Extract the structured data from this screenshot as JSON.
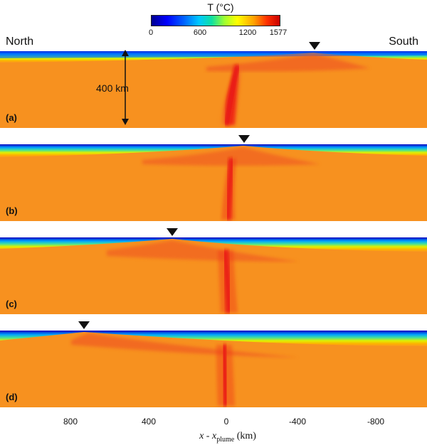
{
  "colorbar": {
    "title": "T (°C)",
    "ticks": [
      {
        "label": "0",
        "value": 0
      },
      {
        "label": "600",
        "value": 600
      },
      {
        "label": "1200",
        "value": 1200
      },
      {
        "label": "1577",
        "value": 1577
      }
    ],
    "min": 0,
    "max": 1577
  },
  "directions": {
    "left": "North",
    "right": "South"
  },
  "scale_label": "400 km",
  "panels": [
    {
      "label": "(a)",
      "marker_x": -475
    },
    {
      "label": "(b)",
      "marker_x": -90
    },
    {
      "label": "(c)",
      "marker_x": 290
    },
    {
      "label": "(d)",
      "marker_x": 770
    }
  ],
  "x_axis": {
    "ticks": [
      "800",
      "400",
      "0",
      "-400",
      "-800"
    ],
    "label_main": "x - x",
    "label_sub": "plume",
    "label_unit": " (km)"
  }
}
